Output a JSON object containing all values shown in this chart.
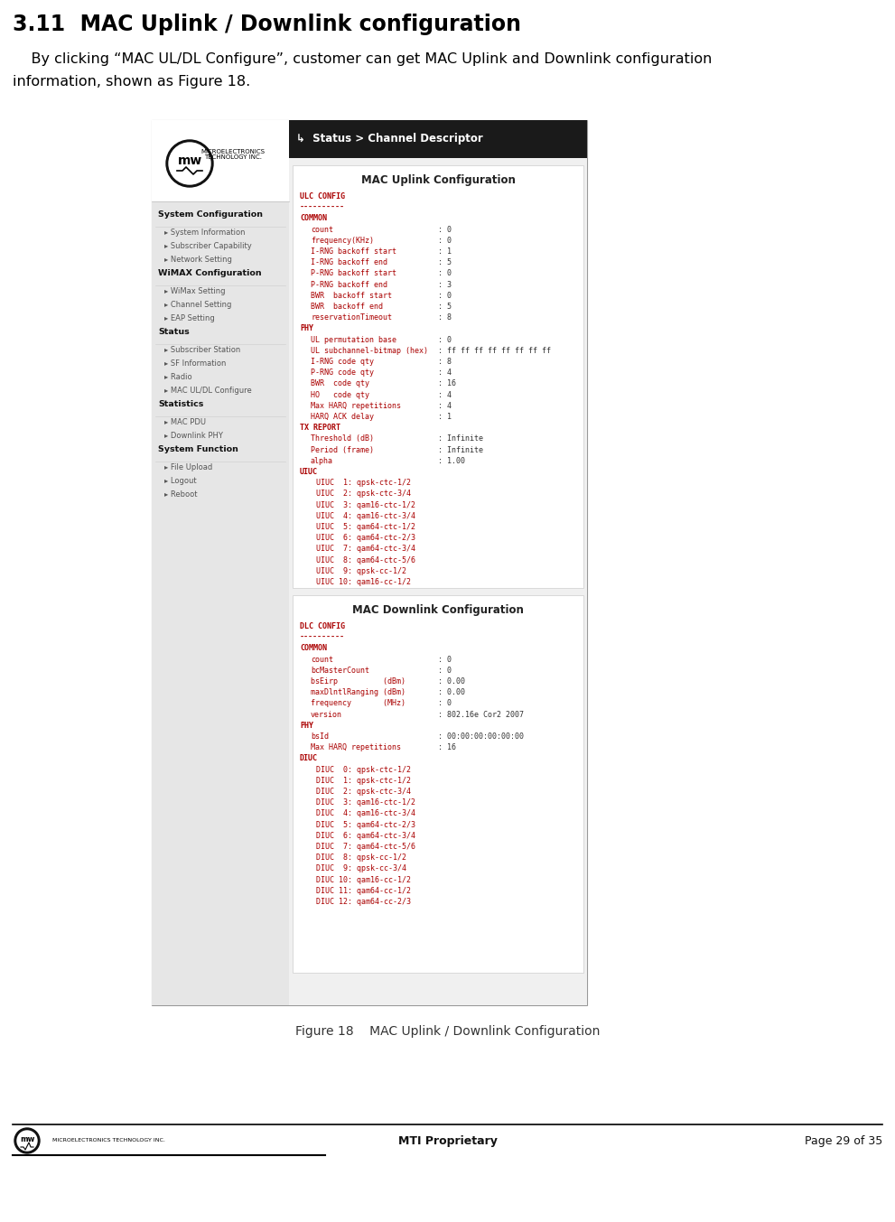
{
  "title": "3.11  MAC Uplink / Downlink configuration",
  "body_line1": "    By clicking “MAC UL/DL Configure”, customer can get MAC Uplink and Downlink configuration",
  "body_line2": "information, shown as Figure 18.",
  "figure_caption": "Figure 18    MAC Uplink / Downlink Configuration",
  "footer_center": "MTI Proprietary",
  "footer_right": "Page 29 of 35",
  "bg_color": "#ffffff",
  "red_color": "#aa0000",
  "nav_items": [
    {
      "type": "header",
      "text": "System Configuration"
    },
    {
      "type": "link",
      "text": "System Information"
    },
    {
      "type": "link",
      "text": "Subscriber Capability"
    },
    {
      "type": "link",
      "text": "Network Setting"
    },
    {
      "type": "header",
      "text": "WiMAX Configuration"
    },
    {
      "type": "link",
      "text": "WiMax Setting"
    },
    {
      "type": "link",
      "text": "Channel Setting"
    },
    {
      "type": "link",
      "text": "EAP Setting"
    },
    {
      "type": "header",
      "text": "Status"
    },
    {
      "type": "link",
      "text": "Subscriber Station"
    },
    {
      "type": "link",
      "text": "SF Information"
    },
    {
      "type": "link",
      "text": "Radio"
    },
    {
      "type": "link",
      "text": "MAC UL/DL Configure"
    },
    {
      "type": "header",
      "text": "Statistics"
    },
    {
      "type": "link",
      "text": "MAC PDU"
    },
    {
      "type": "link",
      "text": "Downlink PHY"
    },
    {
      "type": "header",
      "text": "System Function"
    },
    {
      "type": "link",
      "text": "File Upload"
    },
    {
      "type": "link",
      "text": "Logout"
    },
    {
      "type": "link",
      "text": "Reboot"
    }
  ],
  "ul_config_lines": [
    {
      "text": "ULC CONFIG",
      "bold": true,
      "indent": 0
    },
    {
      "text": "----------",
      "bold": false,
      "indent": 0
    },
    {
      "text": "COMMON",
      "bold": false,
      "indent": 0
    },
    {
      "text": "count",
      "bold": false,
      "indent": 1,
      "value": ": 0"
    },
    {
      "text": "frequency(KHz)",
      "bold": false,
      "indent": 1,
      "value": ": 0"
    },
    {
      "text": "I-RNG backoff start",
      "bold": false,
      "indent": 1,
      "value": ": 1"
    },
    {
      "text": "I-RNG backoff end",
      "bold": false,
      "indent": 1,
      "value": ": 5"
    },
    {
      "text": "P-RNG backoff start",
      "bold": false,
      "indent": 1,
      "value": ": 0"
    },
    {
      "text": "P-RNG backoff end",
      "bold": false,
      "indent": 1,
      "value": ": 3"
    },
    {
      "text": "BWR  backoff start",
      "bold": false,
      "indent": 1,
      "value": ": 0"
    },
    {
      "text": "BWR  backoff end",
      "bold": false,
      "indent": 1,
      "value": ": 5"
    },
    {
      "text": "reservationTimeout",
      "bold": false,
      "indent": 1,
      "value": ": 8"
    },
    {
      "text": "PHY",
      "bold": false,
      "indent": 0
    },
    {
      "text": "UL permutation base",
      "bold": false,
      "indent": 1,
      "value": ": 0"
    },
    {
      "text": "UL subchannel-bitmap (hex)",
      "bold": false,
      "indent": 1,
      "value": ": ff ff ff ff ff ff ff ff"
    },
    {
      "text": "I-RNG code qty",
      "bold": false,
      "indent": 1,
      "value": ": 8"
    },
    {
      "text": "P-RNG code qty",
      "bold": false,
      "indent": 1,
      "value": ": 4"
    },
    {
      "text": "BWR  code qty",
      "bold": false,
      "indent": 1,
      "value": ": 16"
    },
    {
      "text": "HO   code qty",
      "bold": false,
      "indent": 1,
      "value": ": 4"
    },
    {
      "text": "Max HARQ repetitions",
      "bold": false,
      "indent": 1,
      "value": ": 4"
    },
    {
      "text": "HARQ ACK delay",
      "bold": false,
      "indent": 1,
      "value": ": 1"
    },
    {
      "text": "TX REPORT",
      "bold": false,
      "indent": 0
    },
    {
      "text": "Threshold (dB)",
      "bold": false,
      "indent": 1,
      "value": ": Infinite"
    },
    {
      "text": "Period (frame)",
      "bold": false,
      "indent": 1,
      "value": ": Infinite"
    },
    {
      "text": "alpha",
      "bold": false,
      "indent": 1,
      "value": ": 1.00"
    },
    {
      "text": "UIUC",
      "bold": false,
      "indent": 0
    },
    {
      "text": "UIUC  1: qpsk-ctc-1/2",
      "bold": false,
      "indent": 2
    },
    {
      "text": "UIUC  2: qpsk-ctc-3/4",
      "bold": false,
      "indent": 2
    },
    {
      "text": "UIUC  3: qam16-ctc-1/2",
      "bold": false,
      "indent": 2
    },
    {
      "text": "UIUC  4: qam16-ctc-3/4",
      "bold": false,
      "indent": 2
    },
    {
      "text": "UIUC  5: qam64-ctc-1/2",
      "bold": false,
      "indent": 2
    },
    {
      "text": "UIUC  6: qam64-ctc-2/3",
      "bold": false,
      "indent": 2
    },
    {
      "text": "UIUC  7: qam64-ctc-3/4",
      "bold": false,
      "indent": 2
    },
    {
      "text": "UIUC  8: qam64-ctc-5/6",
      "bold": false,
      "indent": 2
    },
    {
      "text": "UIUC  9: qpsk-cc-1/2",
      "bold": false,
      "indent": 2
    },
    {
      "text": "UIUC 10: qam16-cc-1/2",
      "bold": false,
      "indent": 2
    }
  ],
  "dl_config_lines": [
    {
      "text": "DLC CONFIG",
      "bold": true,
      "indent": 0
    },
    {
      "text": "----------",
      "bold": false,
      "indent": 0
    },
    {
      "text": "COMMON",
      "bold": false,
      "indent": 0
    },
    {
      "text": "count",
      "bold": false,
      "indent": 1,
      "value": ": 0"
    },
    {
      "text": "bcMasterCount",
      "bold": false,
      "indent": 1,
      "value": ": 0"
    },
    {
      "text": "bsEirp          (dBm)",
      "bold": false,
      "indent": 1,
      "value": ": 0.00"
    },
    {
      "text": "maxDlntlRanging (dBm)",
      "bold": false,
      "indent": 1,
      "value": ": 0.00"
    },
    {
      "text": "frequency       (MHz)",
      "bold": false,
      "indent": 1,
      "value": ": 0"
    },
    {
      "text": "version",
      "bold": false,
      "indent": 1,
      "value": ": 802.16e Cor2 2007"
    },
    {
      "text": "PHY",
      "bold": false,
      "indent": 0
    },
    {
      "text": "bsId",
      "bold": false,
      "indent": 1,
      "value": ": 00:00:00:00:00:00"
    },
    {
      "text": "Max HARQ repetitions",
      "bold": false,
      "indent": 1,
      "value": ": 16"
    },
    {
      "text": "DIUC",
      "bold": false,
      "indent": 0
    },
    {
      "text": "DIUC  0: qpsk-ctc-1/2",
      "bold": false,
      "indent": 2
    },
    {
      "text": "DIUC  1: qpsk-ctc-1/2",
      "bold": false,
      "indent": 2
    },
    {
      "text": "DIUC  2: qpsk-ctc-3/4",
      "bold": false,
      "indent": 2
    },
    {
      "text": "DIUC  3: qam16-ctc-1/2",
      "bold": false,
      "indent": 2
    },
    {
      "text": "DIUC  4: qam16-ctc-3/4",
      "bold": false,
      "indent": 2
    },
    {
      "text": "DIUC  5: qam64-ctc-2/3",
      "bold": false,
      "indent": 2
    },
    {
      "text": "DIUC  6: qam64-ctc-3/4",
      "bold": false,
      "indent": 2
    },
    {
      "text": "DIUC  7: qam64-ctc-5/6",
      "bold": false,
      "indent": 2
    },
    {
      "text": "DIUC  8: qpsk-cc-1/2",
      "bold": false,
      "indent": 2
    },
    {
      "text": "DIUC  9: qpsk-cc-3/4",
      "bold": false,
      "indent": 2
    },
    {
      "text": "DIUC 10: qam16-cc-1/2",
      "bold": false,
      "indent": 2
    },
    {
      "text": "DIUC 11: qam64-cc-1/2",
      "bold": false,
      "indent": 2
    },
    {
      "text": "DIUC 12: qam64-cc-2/3",
      "bold": false,
      "indent": 2
    }
  ]
}
